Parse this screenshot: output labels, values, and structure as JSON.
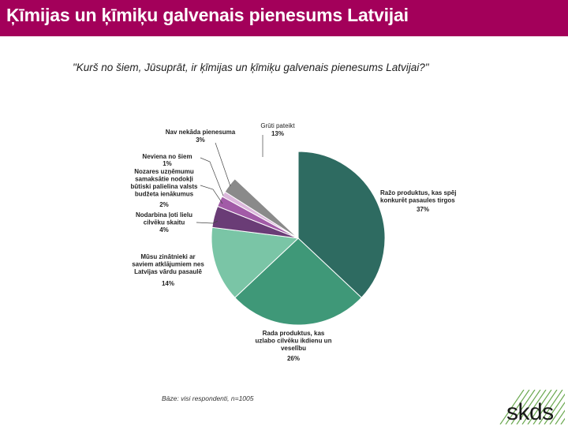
{
  "header": {
    "title": "Ķīmijas un ķīmiķu galvenais pienesums Latvijai"
  },
  "question": "\"Kurš no šiem, Jūsuprāt, ir ķīmijas un ķīmiķu galvenais pienesums Latvijai?\"",
  "base_note": "Bāze: visi respondenti, n=1005",
  "logo": {
    "text": "skds"
  },
  "colors": {
    "header_bg": "#a3005a",
    "logo_stripes": "#6aa84f"
  },
  "chart_data": {
    "type": "pie",
    "title": "",
    "slices": [
      {
        "label": [
          "Ražo produktus, kas spēj",
          "konkurēt pasaules tirgos"
        ],
        "value": 37,
        "value_label": "37%",
        "color": "#2e6b61"
      },
      {
        "label": [
          "Rada produktus, kas",
          "uzlabo cilvēku ikdienu un",
          "veselību"
        ],
        "value": 26,
        "value_label": "26%",
        "color": "#3f9878"
      },
      {
        "label": [
          "Mūsu zinātnieki ar",
          "saviem atklājumiem nes",
          "Latvijas vārdu pasaulē"
        ],
        "value": 14,
        "value_label": "14%",
        "color": "#7ac5a6"
      },
      {
        "label": [
          "Nodarbina ļoti lielu",
          "cilvēku skaitu"
        ],
        "value": 4,
        "value_label": "4%",
        "color": "#6a3c76"
      },
      {
        "label": [
          "Nozares uzņēmumu",
          "samaksātie nodokļi",
          "būtiski palielina valsts",
          "budžeta ienākumus"
        ],
        "value": 2,
        "value_label": "2%",
        "color": "#a25ba7"
      },
      {
        "label": [
          "Neviena no šiem"
        ],
        "value": 1,
        "value_label": "1%",
        "color": "#dcb8dc"
      },
      {
        "label": [
          "Nav nekāda pienesuma"
        ],
        "value": 3,
        "value_label": "3%",
        "color": "#8a8a8a"
      },
      {
        "label": [
          "Grūti pateikt"
        ],
        "value": 13,
        "value_label": "13%",
        "color": "#ffffff"
      }
    ]
  }
}
